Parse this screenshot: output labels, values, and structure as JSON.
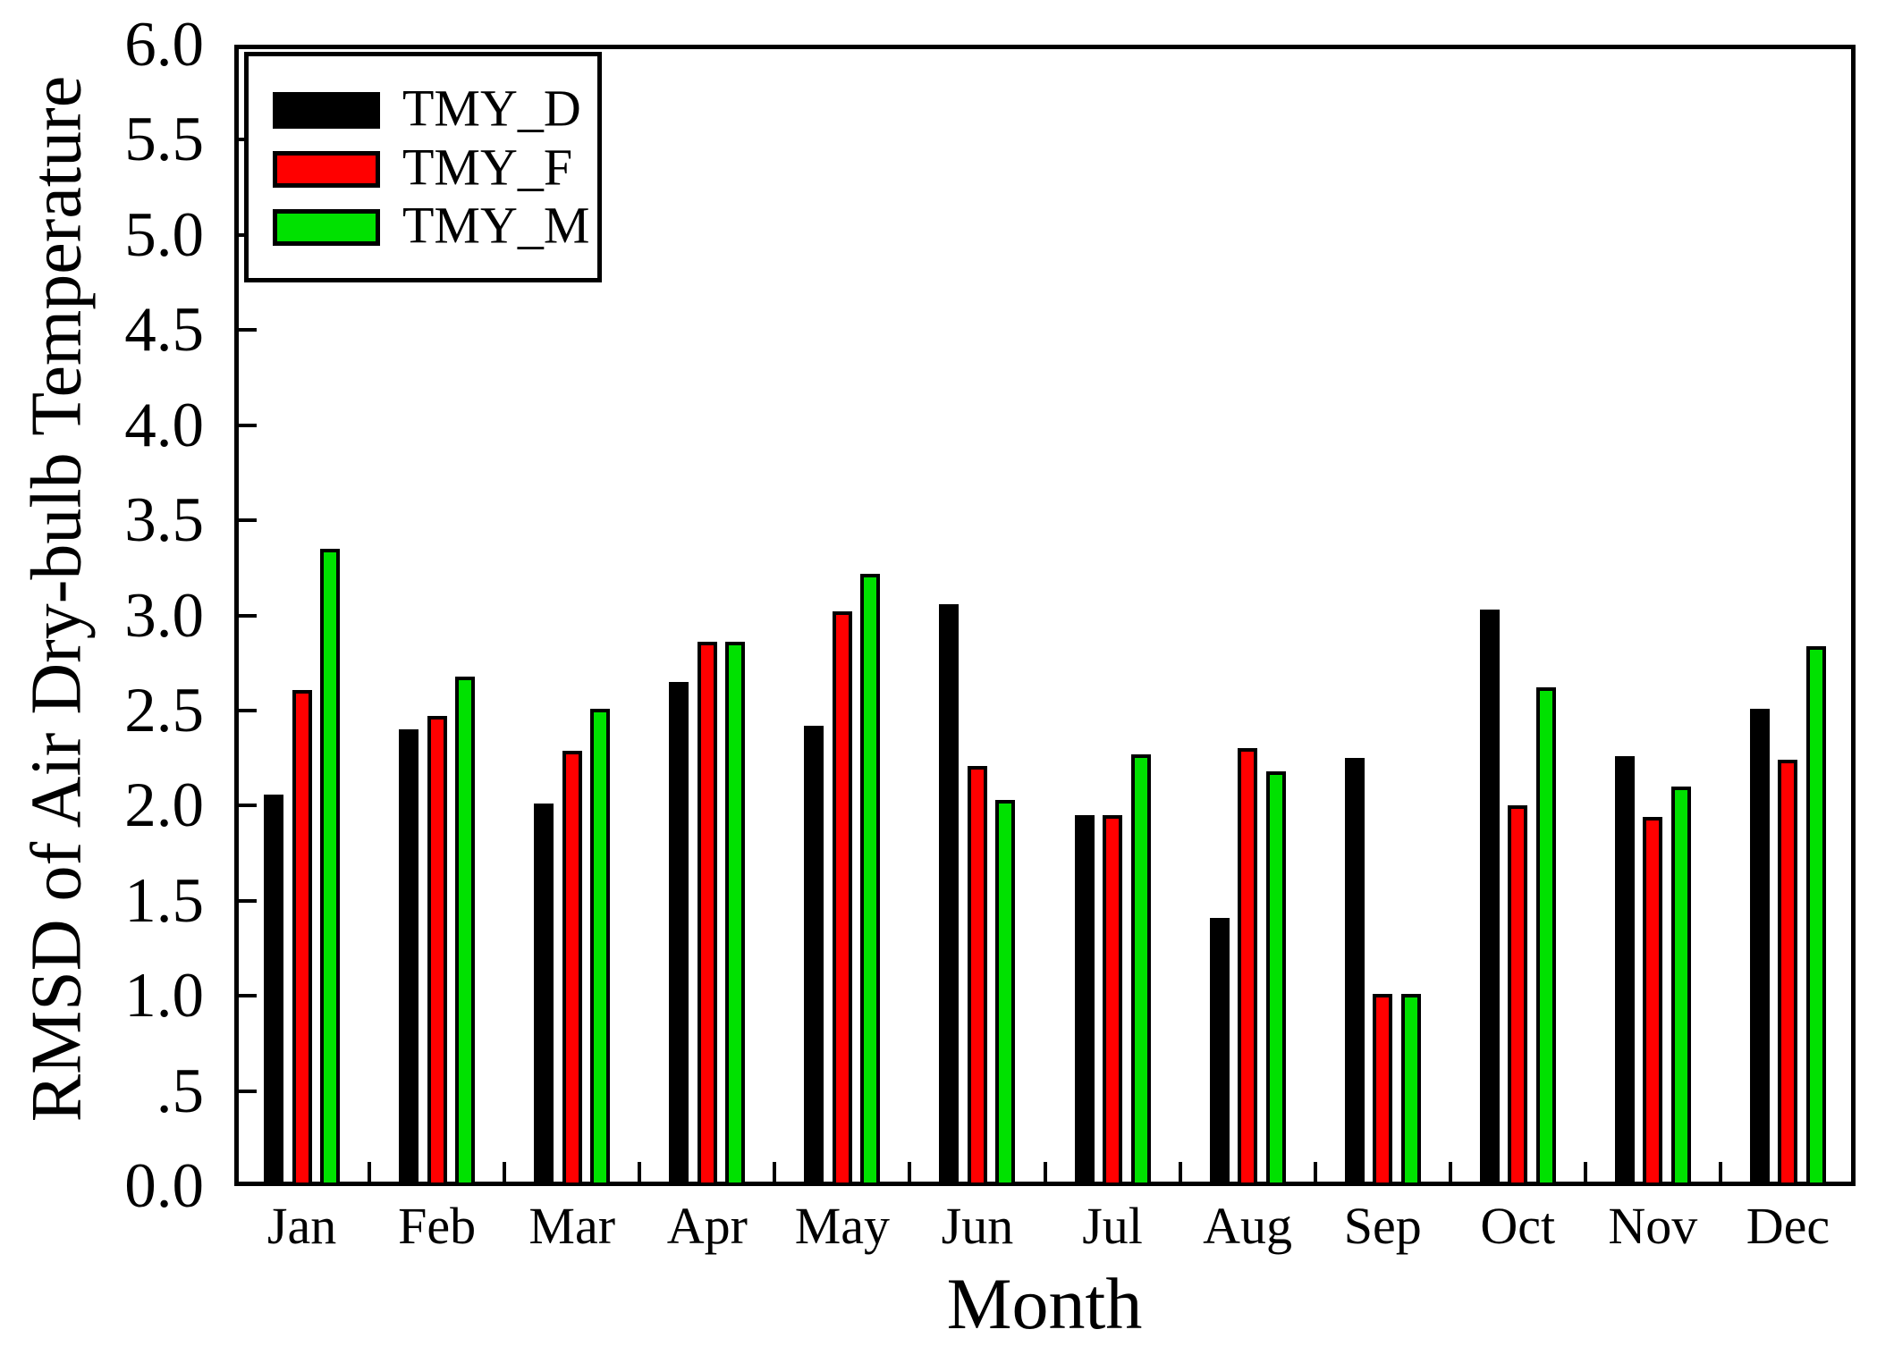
{
  "chart_data": {
    "type": "bar",
    "title": "",
    "xlabel": "Month",
    "ylabel": "RMSD of Air Dry-bulb Temperature",
    "categories": [
      "Jan",
      "Feb",
      "Mar",
      "Apr",
      "May",
      "Jun",
      "Jul",
      "Aug",
      "Sep",
      "Oct",
      "Nov",
      "Dec"
    ],
    "series": [
      {
        "name": "TMY_D",
        "color": "#000000",
        "values": [
          2.06,
          2.4,
          2.01,
          2.65,
          2.42,
          3.06,
          1.95,
          1.41,
          2.25,
          3.03,
          2.26,
          2.51
        ]
      },
      {
        "name": "TMY_F",
        "color": "#ff0000",
        "values": [
          2.61,
          2.47,
          2.29,
          2.86,
          3.02,
          2.21,
          1.95,
          2.3,
          1.01,
          2.0,
          1.94,
          2.24
        ]
      },
      {
        "name": "TMY_M",
        "color": "#00e100",
        "values": [
          3.35,
          2.68,
          2.51,
          2.86,
          3.22,
          2.03,
          2.27,
          2.18,
          1.01,
          2.62,
          2.1,
          2.84
        ]
      }
    ],
    "ylim": [
      0.0,
      6.0
    ],
    "ytick_step": 0.5,
    "ytick_labels": [
      "0.0",
      ".5",
      "1.0",
      "1.5",
      "2.0",
      "2.5",
      "3.0",
      "3.5",
      "4.0",
      "4.5",
      "5.0",
      "5.5",
      "6.0"
    ],
    "grid": false,
    "legend_position": "top-left",
    "bar_outline_color": "#000000",
    "axis_color": "#000000"
  }
}
